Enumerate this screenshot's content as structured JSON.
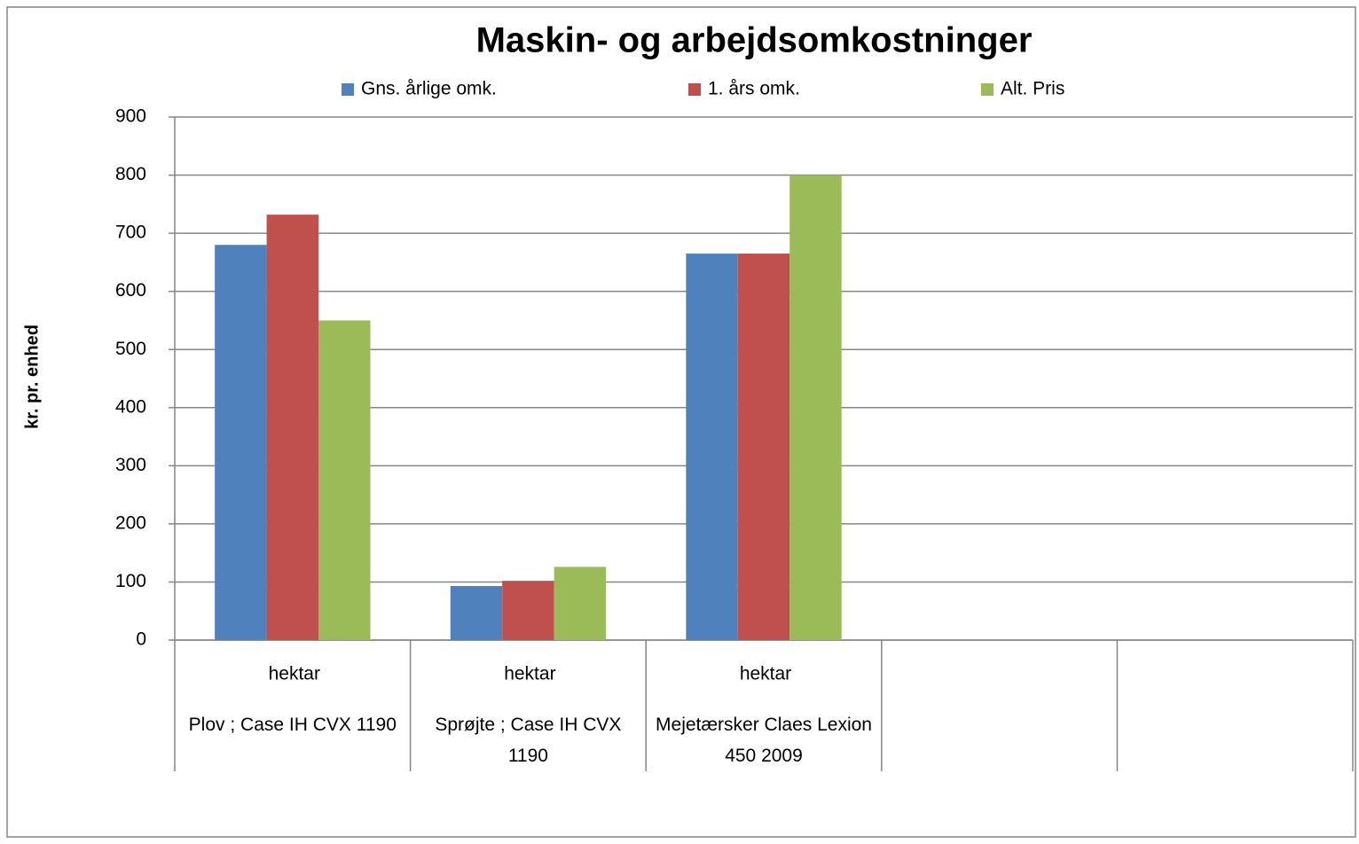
{
  "chart_data": {
    "type": "bar",
    "title": "Maskin- og arbejdsomkostninger",
    "y_label": "kr. pr. enhed",
    "categories": [
      "hektar",
      "hektar",
      "hektar",
      null,
      null
    ],
    "category_groups": [
      "Plov  ; Case IH CVX 1190",
      "Sprøjte  ; Case IH CVX 1190",
      "Mejetærsker Claes Lexion 450 2009",
      null,
      null
    ],
    "series": [
      {
        "name": "Gns. årlige omk.",
        "color": "#4f81bd",
        "values": [
          680,
          93,
          665,
          null,
          null
        ]
      },
      {
        "name": "1. års omk.",
        "color": "#c0504d",
        "values": [
          732,
          102,
          665,
          null,
          null
        ]
      },
      {
        "name": "Alt. Pris",
        "color": "#9bbb59",
        "values": [
          550,
          126,
          800,
          null,
          null
        ]
      }
    ],
    "ylim": [
      0,
      900
    ],
    "yticks": [
      0,
      100,
      200,
      300,
      400,
      500,
      600,
      700,
      800,
      900
    ],
    "grid": true,
    "legend": "top"
  }
}
